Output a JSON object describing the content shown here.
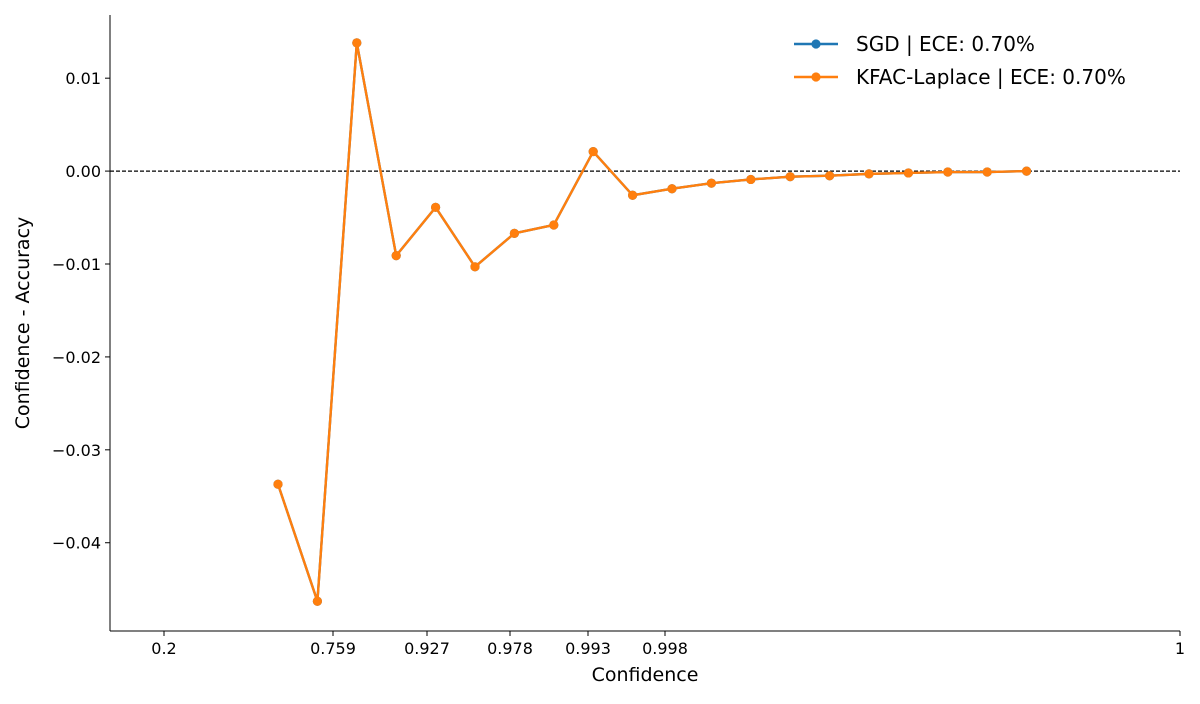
{
  "chart_data": {
    "type": "line",
    "xlabel": "Confidence",
    "ylabel": "Confidence - Accuracy",
    "ylim": [
      -0.0495,
      0.0168
    ],
    "x_tick_labels": [
      "0.2",
      "0.759",
      "0.927",
      "0.978",
      "0.993",
      "0.998",
      "1"
    ],
    "y_ticks": [
      {
        "value": 0.01,
        "label": "0.01"
      },
      {
        "value": 0.0,
        "label": "0.00"
      },
      {
        "value": -0.01,
        "label": "−0.01"
      },
      {
        "value": -0.02,
        "label": "−0.02"
      },
      {
        "value": -0.03,
        "label": "−0.03"
      },
      {
        "value": -0.04,
        "label": "−0.04"
      }
    ],
    "reference_line": {
      "y": 0.0,
      "style": "dashed",
      "color": "#000000"
    },
    "grid": false,
    "legend_position": "top-right",
    "series": [
      {
        "name": "SGD | ECE: 0.70%",
        "color": "#1f77b4",
        "values": [
          -0.0337,
          -0.0463,
          0.0138,
          -0.0091,
          -0.0039,
          -0.0103,
          -0.0067,
          -0.0058,
          0.0021,
          -0.0026,
          -0.0019,
          -0.0013,
          -0.0009,
          -0.0006,
          -0.0005,
          -0.0003,
          -0.0002,
          -0.0001,
          -0.0001,
          0.0
        ]
      },
      {
        "name": "KFAC-Laplace | ECE: 0.70%",
        "color": "#ff7f0e",
        "values": [
          -0.0337,
          -0.0463,
          0.0138,
          -0.0091,
          -0.0039,
          -0.0103,
          -0.0067,
          -0.0058,
          0.0021,
          -0.0026,
          -0.0019,
          -0.0013,
          -0.0009,
          -0.0006,
          -0.0005,
          -0.0003,
          -0.0002,
          -0.0001,
          -0.0001,
          0.0
        ]
      }
    ]
  }
}
